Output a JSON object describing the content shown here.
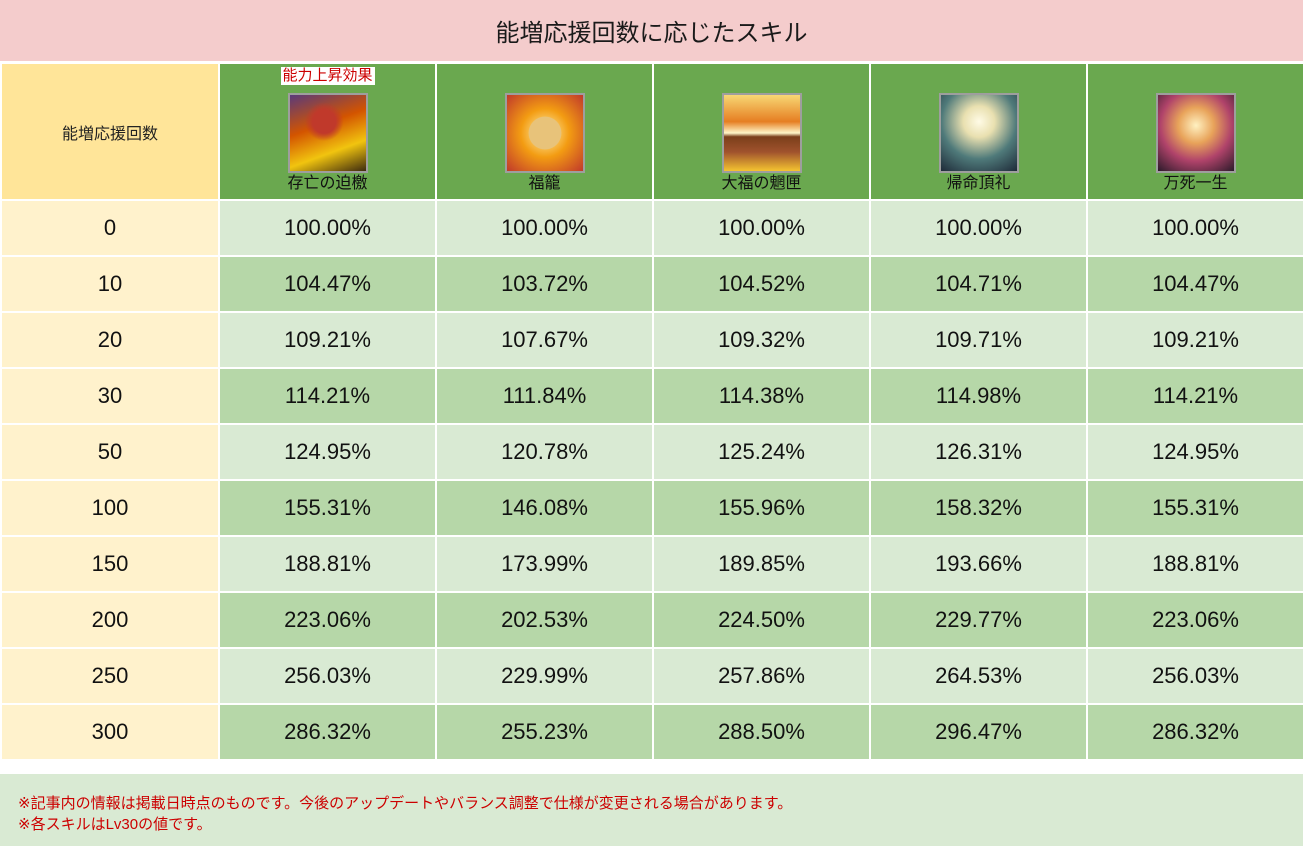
{
  "title": "能増応援回数に応じたスキル",
  "table": {
    "corner_header": "能増応援回数",
    "badge": "能力上昇効果",
    "skills": [
      {
        "name": "存亡の迫檄",
        "icon": "demon-flame-icon",
        "badge": true
      },
      {
        "name": "福籠",
        "icon": "treasure-box-icon",
        "badge": false
      },
      {
        "name": "大福の魍匣",
        "icon": "golden-chest-icon",
        "badge": false
      },
      {
        "name": "帰命頂礼",
        "icon": "crossed-swords-icon",
        "badge": false
      },
      {
        "name": "万死一生",
        "icon": "sword-light-icon",
        "badge": false
      }
    ],
    "rows": [
      {
        "count": "0",
        "values": [
          "100.00%",
          "100.00%",
          "100.00%",
          "100.00%",
          "100.00%"
        ]
      },
      {
        "count": "10",
        "values": [
          "104.47%",
          "103.72%",
          "104.52%",
          "104.71%",
          "104.47%"
        ]
      },
      {
        "count": "20",
        "values": [
          "109.21%",
          "107.67%",
          "109.32%",
          "109.71%",
          "109.21%"
        ]
      },
      {
        "count": "30",
        "values": [
          "114.21%",
          "111.84%",
          "114.38%",
          "114.98%",
          "114.21%"
        ]
      },
      {
        "count": "50",
        "values": [
          "124.95%",
          "120.78%",
          "125.24%",
          "126.31%",
          "124.95%"
        ]
      },
      {
        "count": "100",
        "values": [
          "155.31%",
          "146.08%",
          "155.96%",
          "158.32%",
          "155.31%"
        ]
      },
      {
        "count": "150",
        "values": [
          "188.81%",
          "173.99%",
          "189.85%",
          "193.66%",
          "188.81%"
        ]
      },
      {
        "count": "200",
        "values": [
          "223.06%",
          "202.53%",
          "224.50%",
          "229.77%",
          "223.06%"
        ]
      },
      {
        "count": "250",
        "values": [
          "256.03%",
          "229.99%",
          "257.86%",
          "264.53%",
          "256.03%"
        ]
      },
      {
        "count": "300",
        "values": [
          "286.32%",
          "255.23%",
          "288.50%",
          "296.47%",
          "286.32%"
        ]
      }
    ]
  },
  "notes": [
    "※記事内の情報は掲載日時点のものです。今後のアップデートやバランス調整で仕様が変更される場合があります。",
    "※各スキルはLv30の値です。"
  ],
  "colors": {
    "title_bg": "#f4cccc",
    "corner_bg": "#ffe599",
    "skill_header_bg": "#6aa84f",
    "count_bg": "#fff2cc",
    "row_light": "#d9ead3",
    "row_dark": "#b6d7a8",
    "note_text": "#cc0000"
  }
}
